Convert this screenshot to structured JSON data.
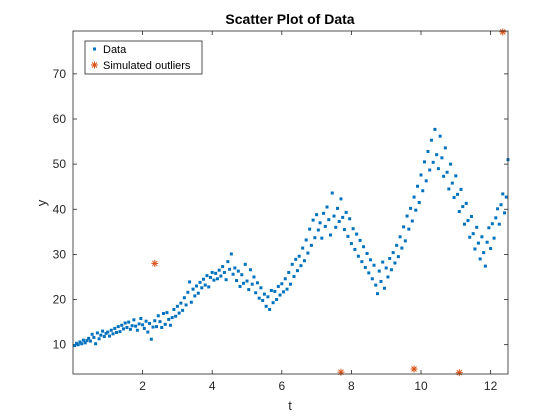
{
  "chart_data": {
    "type": "scatter",
    "title": "Scatter Plot of Data",
    "xlabel": "t",
    "ylabel": "y",
    "xlim": [
      0,
      12.5
    ],
    "ylim": [
      3.5,
      79.5
    ],
    "xticks": [
      2,
      4,
      6,
      8,
      10,
      12
    ],
    "yticks": [
      10,
      20,
      30,
      40,
      50,
      60,
      70
    ],
    "grid": false,
    "legend_position": "top-left",
    "series": [
      {
        "name": "Data",
        "marker": "square",
        "color": "#0072BD",
        "points": [
          [
            0.05,
            9.8
          ],
          [
            0.1,
            10.3
          ],
          [
            0.15,
            10.0
          ],
          [
            0.2,
            10.6
          ],
          [
            0.25,
            10.2
          ],
          [
            0.3,
            11.0
          ],
          [
            0.35,
            10.4
          ],
          [
            0.4,
            10.9
          ],
          [
            0.45,
            11.4
          ],
          [
            0.5,
            10.8
          ],
          [
            0.55,
            12.3
          ],
          [
            0.6,
            11.6
          ],
          [
            0.65,
            10.2
          ],
          [
            0.7,
            12.6
          ],
          [
            0.75,
            11.3
          ],
          [
            0.8,
            12.1
          ],
          [
            0.85,
            13.0
          ],
          [
            0.9,
            11.8
          ],
          [
            0.95,
            12.5
          ],
          [
            1.0,
            12.8
          ],
          [
            1.05,
            11.9
          ],
          [
            1.1,
            13.2
          ],
          [
            1.15,
            12.4
          ],
          [
            1.2,
            13.6
          ],
          [
            1.25,
            12.7
          ],
          [
            1.3,
            14.0
          ],
          [
            1.35,
            12.9
          ],
          [
            1.4,
            14.3
          ],
          [
            1.45,
            13.5
          ],
          [
            1.5,
            14.8
          ],
          [
            1.55,
            13.8
          ],
          [
            1.6,
            15.0
          ],
          [
            1.65,
            13.4
          ],
          [
            1.7,
            14.2
          ],
          [
            1.75,
            15.5
          ],
          [
            1.8,
            14.1
          ],
          [
            1.85,
            13.2
          ],
          [
            1.9,
            14.6
          ],
          [
            1.95,
            15.8
          ],
          [
            2.0,
            14.4
          ],
          [
            2.05,
            13.6
          ],
          [
            2.1,
            15.2
          ],
          [
            2.15,
            12.8
          ],
          [
            2.2,
            14.7
          ],
          [
            2.25,
            11.2
          ],
          [
            2.3,
            13.9
          ],
          [
            2.35,
            15.3
          ],
          [
            2.4,
            14.0
          ],
          [
            2.45,
            16.4
          ],
          [
            2.5,
            15.1
          ],
          [
            2.55,
            13.8
          ],
          [
            2.6,
            16.9
          ],
          [
            2.65,
            14.5
          ],
          [
            2.7,
            17.1
          ],
          [
            2.75,
            15.6
          ],
          [
            2.8,
            14.3
          ],
          [
            2.85,
            16.0
          ],
          [
            2.9,
            17.8
          ],
          [
            2.95,
            16.3
          ],
          [
            3.0,
            18.5
          ],
          [
            3.05,
            17.0
          ],
          [
            3.1,
            19.2
          ],
          [
            3.15,
            17.6
          ],
          [
            3.2,
            20.4
          ],
          [
            3.25,
            18.8
          ],
          [
            3.3,
            21.6
          ],
          [
            3.35,
            23.9
          ],
          [
            3.4,
            19.4
          ],
          [
            3.45,
            22.3
          ],
          [
            3.5,
            20.8
          ],
          [
            3.55,
            23.0
          ],
          [
            3.6,
            21.4
          ],
          [
            3.65,
            23.8
          ],
          [
            3.7,
            22.6
          ],
          [
            3.75,
            24.5
          ],
          [
            3.8,
            23.2
          ],
          [
            3.85,
            25.3
          ],
          [
            3.9,
            22.8
          ],
          [
            3.95,
            24.9
          ],
          [
            4.0,
            26.0
          ],
          [
            4.05,
            24.3
          ],
          [
            4.1,
            25.8
          ],
          [
            4.15,
            24.6
          ],
          [
            4.2,
            26.5
          ],
          [
            4.25,
            25.2
          ],
          [
            4.3,
            27.3
          ],
          [
            4.35,
            26.0
          ],
          [
            4.4,
            24.4
          ],
          [
            4.45,
            28.4
          ],
          [
            4.5,
            26.7
          ],
          [
            4.55,
            30.1
          ],
          [
            4.6,
            25.6
          ],
          [
            4.65,
            27.0
          ],
          [
            4.7,
            24.2
          ],
          [
            4.75,
            26.3
          ],
          [
            4.8,
            22.9
          ],
          [
            4.85,
            25.5
          ],
          [
            4.9,
            23.6
          ],
          [
            4.95,
            27.8
          ],
          [
            5.0,
            24.1
          ],
          [
            5.05,
            22.2
          ],
          [
            5.1,
            26.6
          ],
          [
            5.15,
            23.4
          ],
          [
            5.2,
            25.0
          ],
          [
            5.25,
            21.5
          ],
          [
            5.3,
            23.7
          ],
          [
            5.35,
            20.3
          ],
          [
            5.4,
            22.6
          ],
          [
            5.45,
            19.8
          ],
          [
            5.5,
            21.2
          ],
          [
            5.55,
            18.5
          ],
          [
            5.6,
            20.6
          ],
          [
            5.65,
            17.8
          ],
          [
            5.7,
            22.0
          ],
          [
            5.75,
            19.3
          ],
          [
            5.8,
            21.8
          ],
          [
            5.85,
            20.0
          ],
          [
            5.9,
            22.9
          ],
          [
            5.95,
            21.0
          ],
          [
            6.0,
            23.5
          ],
          [
            6.05,
            21.7
          ],
          [
            6.1,
            24.6
          ],
          [
            6.15,
            22.3
          ],
          [
            6.2,
            26.0
          ],
          [
            6.25,
            23.4
          ],
          [
            6.3,
            27.8
          ],
          [
            6.35,
            25.1
          ],
          [
            6.4,
            28.9
          ],
          [
            6.45,
            26.4
          ],
          [
            6.5,
            29.6
          ],
          [
            6.55,
            27.5
          ],
          [
            6.6,
            31.4
          ],
          [
            6.65,
            28.6
          ],
          [
            6.7,
            33.2
          ],
          [
            6.75,
            30.3
          ],
          [
            6.8,
            35.6
          ],
          [
            6.85,
            32.0
          ],
          [
            6.9,
            37.6
          ],
          [
            6.95,
            33.7
          ],
          [
            7.0,
            38.8
          ],
          [
            7.05,
            35.4
          ],
          [
            7.1,
            37.0
          ],
          [
            7.15,
            33.6
          ],
          [
            7.2,
            39.1
          ],
          [
            7.25,
            36.2
          ],
          [
            7.3,
            40.5
          ],
          [
            7.35,
            37.7
          ],
          [
            7.4,
            34.3
          ],
          [
            7.45,
            43.6
          ],
          [
            7.5,
            38.5
          ],
          [
            7.55,
            36.0
          ],
          [
            7.6,
            40.2
          ],
          [
            7.65,
            37.3
          ],
          [
            7.7,
            42.3
          ],
          [
            7.75,
            38.2
          ],
          [
            7.8,
            35.5
          ],
          [
            7.85,
            39.3
          ],
          [
            7.9,
            34.0
          ],
          [
            7.95,
            37.9
          ],
          [
            8.0,
            32.4
          ],
          [
            8.05,
            35.7
          ],
          [
            8.1,
            31.1
          ],
          [
            8.15,
            34.5
          ],
          [
            8.2,
            29.6
          ],
          [
            8.25,
            33.1
          ],
          [
            8.3,
            28.4
          ],
          [
            8.35,
            31.7
          ],
          [
            8.4,
            27.1
          ],
          [
            8.45,
            30.2
          ],
          [
            8.5,
            25.9
          ],
          [
            8.55,
            28.8
          ],
          [
            8.6,
            24.6
          ],
          [
            8.65,
            27.6
          ],
          [
            8.7,
            23.2
          ],
          [
            8.75,
            21.3
          ],
          [
            8.8,
            26.3
          ],
          [
            8.85,
            24.0
          ],
          [
            8.9,
            28.3
          ],
          [
            8.95,
            22.5
          ],
          [
            9.0,
            27.0
          ],
          [
            9.05,
            25.0
          ],
          [
            9.1,
            29.1
          ],
          [
            9.15,
            26.6
          ],
          [
            9.2,
            30.4
          ],
          [
            9.25,
            28.1
          ],
          [
            9.3,
            32.0
          ],
          [
            9.35,
            29.5
          ],
          [
            9.4,
            33.9
          ],
          [
            9.45,
            31.4
          ],
          [
            9.5,
            36.1
          ],
          [
            9.55,
            33.0
          ],
          [
            9.6,
            38.5
          ],
          [
            9.65,
            35.6
          ],
          [
            9.7,
            40.2
          ],
          [
            9.75,
            37.4
          ],
          [
            9.8,
            42.7
          ],
          [
            9.85,
            39.8
          ],
          [
            9.9,
            45.1
          ],
          [
            9.95,
            41.5
          ],
          [
            10.0,
            47.6
          ],
          [
            10.05,
            44.1
          ],
          [
            10.1,
            50.5
          ],
          [
            10.15,
            46.3
          ],
          [
            10.2,
            52.8
          ],
          [
            10.25,
            48.7
          ],
          [
            10.3,
            55.3
          ],
          [
            10.35,
            50.4
          ],
          [
            10.4,
            57.7
          ],
          [
            10.45,
            52.1
          ],
          [
            10.5,
            49.0
          ],
          [
            10.55,
            56.2
          ],
          [
            10.6,
            51.4
          ],
          [
            10.65,
            47.3
          ],
          [
            10.7,
            53.6
          ],
          [
            10.75,
            48.2
          ],
          [
            10.8,
            44.5
          ],
          [
            10.85,
            50.0
          ],
          [
            10.9,
            45.8
          ],
          [
            10.95,
            42.6
          ],
          [
            11.0,
            47.4
          ],
          [
            11.05,
            43.3
          ],
          [
            11.1,
            39.5
          ],
          [
            11.15,
            44.4
          ],
          [
            11.2,
            40.6
          ],
          [
            11.25,
            36.7
          ],
          [
            11.3,
            41.3
          ],
          [
            11.35,
            37.5
          ],
          [
            11.4,
            33.8
          ],
          [
            11.45,
            38.4
          ],
          [
            11.5,
            34.6
          ],
          [
            11.55,
            31.2
          ],
          [
            11.6,
            36.0
          ],
          [
            11.65,
            32.5
          ],
          [
            11.7,
            29.0
          ],
          [
            11.75,
            33.9
          ],
          [
            11.8,
            30.4
          ],
          [
            11.85,
            27.4
          ],
          [
            11.9,
            32.7
          ],
          [
            11.95,
            35.9
          ],
          [
            12.0,
            31.3
          ],
          [
            12.05,
            36.8
          ],
          [
            12.1,
            33.6
          ],
          [
            12.15,
            38.1
          ],
          [
            12.2,
            40.1
          ],
          [
            12.25,
            36.7
          ],
          [
            12.3,
            41.0
          ],
          [
            12.35,
            43.4
          ],
          [
            12.4,
            39.2
          ],
          [
            12.45,
            42.7
          ],
          [
            12.5,
            51.0
          ]
        ]
      },
      {
        "name": "Simulated outliers",
        "marker": "asterisk",
        "color": "#D95319",
        "points": [
          [
            2.35,
            28.0
          ],
          [
            7.7,
            3.9
          ],
          [
            9.8,
            4.6
          ],
          [
            11.1,
            3.8
          ],
          [
            12.35,
            79.3
          ]
        ]
      }
    ]
  }
}
